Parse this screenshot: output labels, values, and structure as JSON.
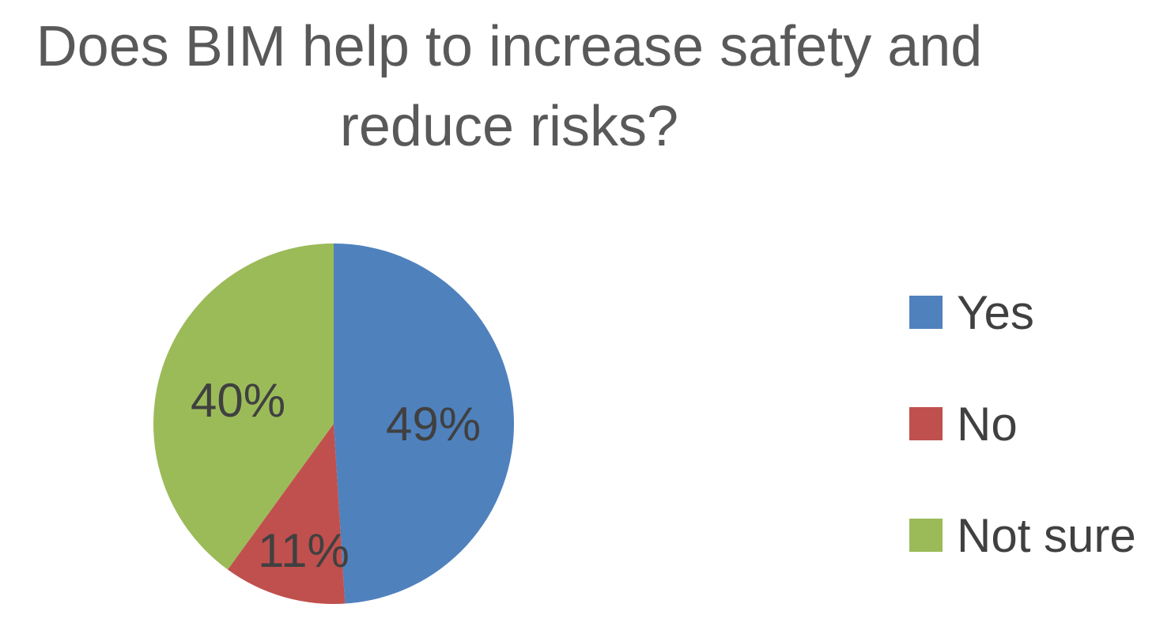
{
  "chart_data": {
    "type": "pie",
    "title_lines": [
      "Does BIM help to increase safety and",
      "reduce risks?"
    ],
    "categories": [
      "Yes",
      "No",
      "Not sure"
    ],
    "values": [
      49,
      11,
      40
    ],
    "data_labels": [
      "49%",
      "11%",
      "40%"
    ],
    "colors": [
      "#4F81BD",
      "#C0504D",
      "#9BBB59"
    ],
    "legend_position": "right"
  }
}
